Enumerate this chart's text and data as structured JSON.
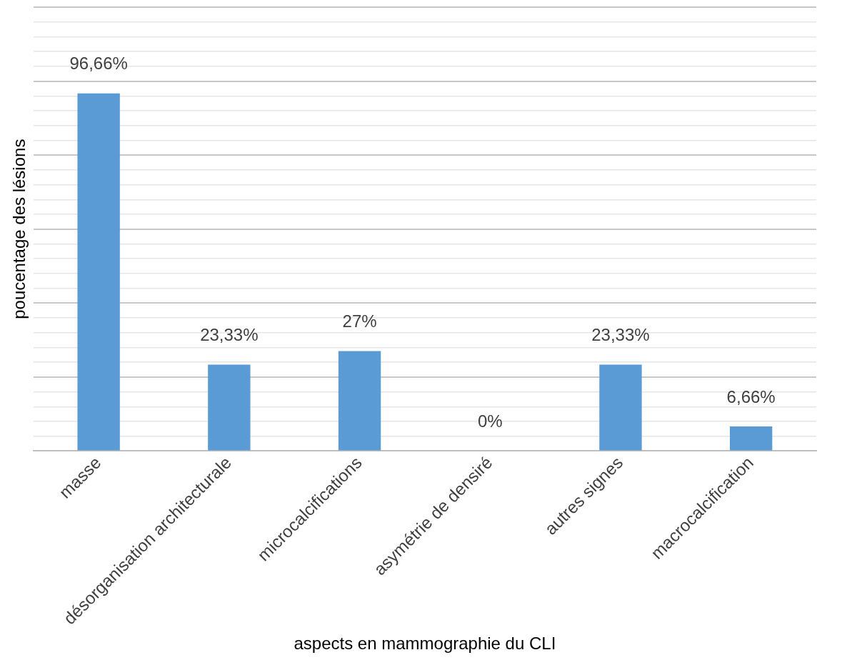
{
  "chart_data": {
    "type": "bar",
    "xlabel": "aspects en mammographie du CLI",
    "ylabel": "poucentage des lésions",
    "categories": [
      "masse",
      "désorganisation architecturale",
      "microcalcifications",
      "asymétrie de densiré",
      "autres signes",
      "macrocalcification"
    ],
    "values": [
      96.66,
      23.33,
      27,
      0,
      23.33,
      6.66
    ],
    "value_labels": [
      "96,66%",
      "23,33%",
      "27%",
      "0%",
      "23,33%",
      "6,66%"
    ],
    "color": "#5b9bd5",
    "ylim": [
      0,
      120
    ],
    "yticks": [
      {
        "value": 0,
        "label": null
      },
      {
        "value": 4,
        "label": null
      },
      {
        "value": 8,
        "label": null
      },
      {
        "value": 12,
        "label": null
      },
      {
        "value": 16,
        "label": null
      },
      {
        "value": 20,
        "label": null
      },
      {
        "value": 24,
        "label": null
      },
      {
        "value": 28,
        "label": null
      },
      {
        "value": 32,
        "label": null
      },
      {
        "value": 36,
        "label": null
      },
      {
        "value": 40,
        "label": null
      },
      {
        "value": 44,
        "label": null
      },
      {
        "value": 48,
        "label": null
      },
      {
        "value": 52,
        "label": null
      },
      {
        "value": 56,
        "label": null
      },
      {
        "value": 60,
        "label": null
      },
      {
        "value": 64,
        "label": null
      },
      {
        "value": 68,
        "label": null
      },
      {
        "value": 72,
        "label": null
      },
      {
        "value": 76,
        "label": null
      },
      {
        "value": 80,
        "label": null
      },
      {
        "value": 84,
        "label": null
      },
      {
        "value": 88,
        "label": null
      },
      {
        "value": 92,
        "label": null
      },
      {
        "value": 96,
        "label": null
      },
      {
        "value": 100,
        "label": null
      },
      {
        "value": 104,
        "label": null
      },
      {
        "value": 108,
        "label": null
      },
      {
        "value": 112,
        "label": null
      },
      {
        "value": 116,
        "label": null
      },
      {
        "value": 120,
        "label": null
      }
    ],
    "grid": "y",
    "tick_labels": "x",
    "legend": false
  }
}
